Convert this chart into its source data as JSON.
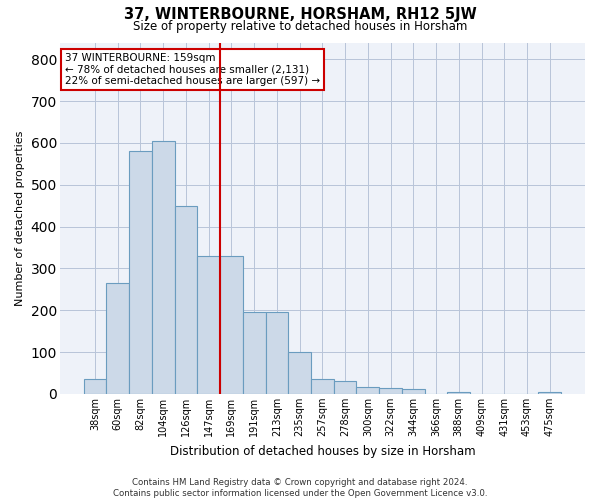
{
  "title": "37, WINTERBOURNE, HORSHAM, RH12 5JW",
  "subtitle": "Size of property relative to detached houses in Horsham",
  "xlabel": "Distribution of detached houses by size in Horsham",
  "ylabel": "Number of detached properties",
  "bar_color": "#ccd9e8",
  "bar_edge_color": "#6a9cbf",
  "bg_color": "#eef2f9",
  "grid_color": "#b8c4d8",
  "vline_color": "#cc0000",
  "annotation_text": "37 WINTERBOURNE: 159sqm\n← 78% of detached houses are smaller (2,131)\n22% of semi-detached houses are larger (597) →",
  "annotation_box_color": "white",
  "annotation_box_edge": "#cc0000",
  "categories": [
    "38sqm",
    "60sqm",
    "82sqm",
    "104sqm",
    "126sqm",
    "147sqm",
    "169sqm",
    "191sqm",
    "213sqm",
    "235sqm",
    "257sqm",
    "278sqm",
    "300sqm",
    "322sqm",
    "344sqm",
    "366sqm",
    "388sqm",
    "409sqm",
    "431sqm",
    "453sqm",
    "475sqm"
  ],
  "values": [
    35,
    265,
    580,
    605,
    450,
    330,
    330,
    195,
    195,
    100,
    35,
    32,
    17,
    13,
    12,
    0,
    5,
    0,
    0,
    0,
    5
  ],
  "vline_index": 6,
  "ylim": [
    0,
    840
  ],
  "yticks": [
    0,
    100,
    200,
    300,
    400,
    500,
    600,
    700,
    800
  ],
  "footer": "Contains HM Land Registry data © Crown copyright and database right 2024.\nContains public sector information licensed under the Open Government Licence v3.0."
}
